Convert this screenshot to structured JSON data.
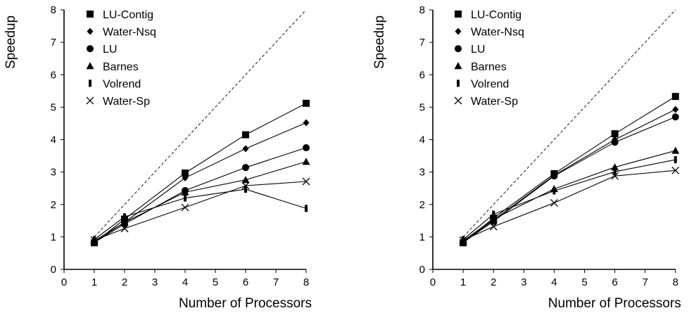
{
  "chart_data": [
    {
      "type": "line",
      "xlabel": "Number of Processors",
      "ylabel": "Speedup",
      "xlim": [
        0,
        8
      ],
      "ylim": [
        0,
        8
      ],
      "xticks": [
        "0",
        "1",
        "2",
        "3",
        "4",
        "5",
        "6",
        "7",
        "8"
      ],
      "yticks": [
        "0",
        "1",
        "2",
        "3",
        "4",
        "5",
        "6",
        "7",
        "8"
      ],
      "legend": "top-left",
      "reference_line": {
        "style": "dashed",
        "x": [
          1,
          8
        ],
        "y": [
          1,
          8
        ]
      },
      "x": [
        1,
        2,
        4,
        6,
        8
      ],
      "series": [
        {
          "name": "LU-Contig",
          "marker": "square",
          "values": [
            0.82,
            1.55,
            2.97,
            4.15,
            5.12
          ]
        },
        {
          "name": "Water-Nsq",
          "marker": "diamond",
          "values": [
            0.85,
            1.45,
            2.82,
            3.72,
            4.52
          ]
        },
        {
          "name": "LU",
          "marker": "circle",
          "values": [
            0.83,
            1.4,
            2.43,
            3.14,
            3.75
          ]
        },
        {
          "name": "Barnes",
          "marker": "triangle",
          "values": [
            0.88,
            1.45,
            2.38,
            2.76,
            3.32
          ]
        },
        {
          "name": "Volrend",
          "marker": "bar",
          "values": [
            0.92,
            1.62,
            2.2,
            2.47,
            1.88
          ]
        },
        {
          "name": "Water-Sp",
          "marker": "cross",
          "values": [
            0.9,
            1.26,
            1.91,
            2.58,
            2.71
          ]
        }
      ]
    },
    {
      "type": "line",
      "xlabel": "Number of Processors",
      "ylabel": "Speedup",
      "xlim": [
        0,
        8
      ],
      "ylim": [
        0,
        8
      ],
      "xticks": [
        "0",
        "1",
        "2",
        "3",
        "4",
        "5",
        "6",
        "7",
        "8"
      ],
      "yticks": [
        "0",
        "1",
        "2",
        "3",
        "4",
        "5",
        "6",
        "7",
        "8"
      ],
      "legend": "top-left",
      "reference_line": {
        "style": "dashed",
        "x": [
          1,
          8
        ],
        "y": [
          1,
          8
        ]
      },
      "x": [
        1,
        2,
        4,
        6,
        8
      ],
      "series": [
        {
          "name": "LU-Contig",
          "marker": "square",
          "values": [
            0.82,
            1.58,
            2.95,
            4.18,
            5.33
          ]
        },
        {
          "name": "Water-Nsq",
          "marker": "diamond",
          "values": [
            0.85,
            1.52,
            2.9,
            4.0,
            4.93
          ]
        },
        {
          "name": "LU",
          "marker": "circle",
          "values": [
            0.83,
            1.48,
            2.88,
            3.92,
            4.7
          ]
        },
        {
          "name": "Barnes",
          "marker": "triangle",
          "values": [
            0.88,
            1.55,
            2.48,
            3.15,
            3.66
          ]
        },
        {
          "name": "Volrend",
          "marker": "bar",
          "values": [
            0.92,
            1.7,
            2.42,
            3.01,
            3.38
          ]
        },
        {
          "name": "Water-Sp",
          "marker": "cross",
          "values": [
            0.9,
            1.32,
            2.05,
            2.88,
            3.05
          ]
        }
      ]
    }
  ]
}
